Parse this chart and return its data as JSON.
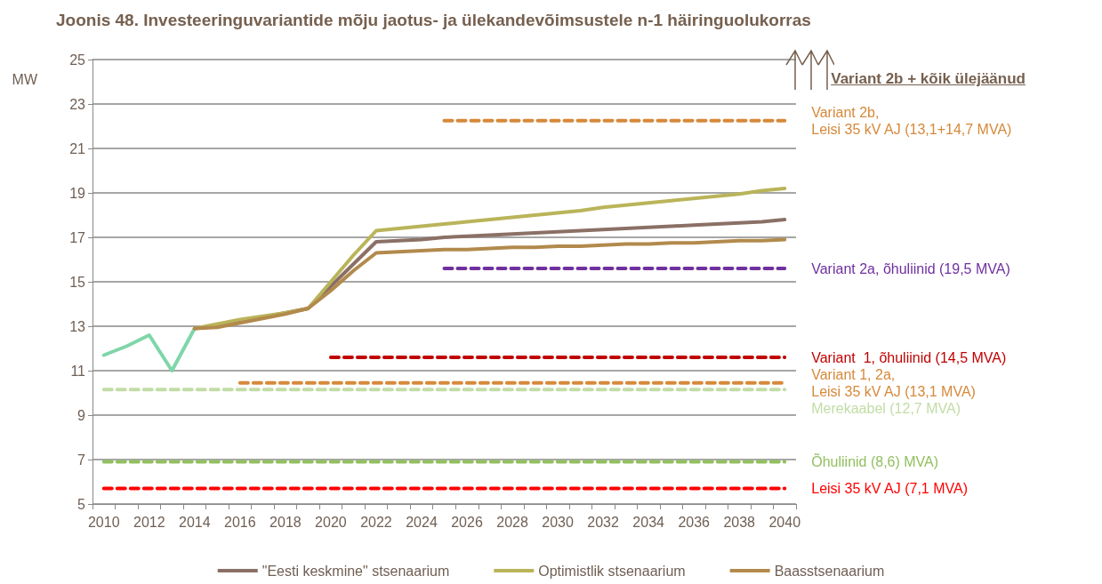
{
  "chart_data": {
    "type": "line",
    "title": "Joonis 48. Investeeringuvariantide mõju jaotus- ja ülekandevõimsustele n-1 häiringuolukorras",
    "ylabel": "MW",
    "categories": [
      "2010",
      null,
      "2012",
      null,
      "2014",
      null,
      "2016",
      null,
      "2018",
      null,
      "2020",
      null,
      "2022",
      null,
      "2024",
      null,
      "2026",
      null,
      "2028",
      null,
      "2030",
      null,
      "2032",
      null,
      "2034",
      null,
      "2036",
      null,
      "2038",
      null,
      "2040"
    ],
    "ylim": [
      5,
      25
    ],
    "yticks": [
      5,
      7,
      9,
      11,
      13,
      15,
      17,
      19,
      21,
      23,
      25
    ],
    "grid": "y",
    "legend": "bottom",
    "marker": "none",
    "annotations": [
      "Variant 2b + kõik ülejäänud"
    ],
    "series": [
      {
        "color": "#7fd6a8",
        "line_style": "solid",
        "values": [
          11.7,
          12.1,
          12.6,
          11.0,
          12.9,
          null,
          null,
          null,
          null,
          null,
          null,
          null,
          null,
          null,
          null,
          null,
          null,
          null,
          null,
          null,
          null,
          null,
          null,
          null,
          null,
          null,
          null,
          null,
          null,
          null,
          null
        ]
      },
      {
        "name": "\"Eesti keskmine\" stsenaarium",
        "color": "#8b7066",
        "line_style": "solid",
        "values": [
          null,
          null,
          null,
          null,
          12.9,
          13.0,
          13.2,
          13.4,
          13.6,
          13.8,
          14.8,
          15.8,
          16.8,
          16.85,
          16.9,
          17.0,
          17.05,
          17.1,
          17.15,
          17.2,
          17.25,
          17.3,
          17.35,
          17.4,
          17.45,
          17.5,
          17.55,
          17.6,
          17.65,
          17.7,
          17.8
        ]
      },
      {
        "name": "Optimistlik stsenaarium",
        "color": "#bab45a",
        "line_style": "solid",
        "values": [
          null,
          null,
          null,
          null,
          12.9,
          13.1,
          13.3,
          13.45,
          13.6,
          13.8,
          15.0,
          16.2,
          17.3,
          17.4,
          17.5,
          17.6,
          17.7,
          17.8,
          17.9,
          18.0,
          18.1,
          18.2,
          18.35,
          18.45,
          18.55,
          18.65,
          18.75,
          18.85,
          18.95,
          19.1,
          19.2
        ]
      },
      {
        "name": "Baasstsenaarium",
        "color": "#b28a4c",
        "line_style": "solid",
        "values": [
          null,
          null,
          null,
          null,
          12.9,
          12.95,
          13.15,
          13.35,
          13.55,
          13.8,
          14.6,
          15.5,
          16.3,
          16.35,
          16.4,
          16.45,
          16.45,
          16.5,
          16.55,
          16.55,
          16.6,
          16.6,
          16.65,
          16.7,
          16.7,
          16.75,
          16.75,
          16.8,
          16.85,
          16.85,
          16.9
        ]
      },
      {
        "name": "Variant 2b,\nLeisi 35 kV AJ (13,1+14,7 MVA)",
        "color": "#d6893a",
        "line_style": "dashed",
        "values": [
          null,
          null,
          null,
          null,
          null,
          null,
          null,
          null,
          null,
          null,
          null,
          null,
          null,
          null,
          null,
          22.25,
          22.25,
          22.25,
          22.25,
          22.25,
          22.25,
          22.25,
          22.25,
          22.25,
          22.25,
          22.25,
          22.25,
          22.25,
          22.25,
          22.25,
          22.25
        ]
      },
      {
        "name": "Variant 2a, õhuliinid (19,5 MVA)",
        "color": "#7030a0",
        "line_style": "dashed",
        "values": [
          null,
          null,
          null,
          null,
          null,
          null,
          null,
          null,
          null,
          null,
          null,
          null,
          null,
          null,
          null,
          15.6,
          15.6,
          15.6,
          15.6,
          15.6,
          15.6,
          15.6,
          15.6,
          15.6,
          15.6,
          15.6,
          15.6,
          15.6,
          15.6,
          15.6,
          15.6
        ]
      },
      {
        "name": "Variant  1, õhuliinid (14,5 MVA)",
        "color": "#c00000",
        "line_style": "dashed",
        "values": [
          null,
          null,
          null,
          null,
          null,
          null,
          null,
          null,
          null,
          null,
          11.6,
          11.6,
          11.6,
          11.6,
          11.6,
          11.6,
          11.6,
          11.6,
          11.6,
          11.6,
          11.6,
          11.6,
          11.6,
          11.6,
          11.6,
          11.6,
          11.6,
          11.6,
          11.6,
          11.6,
          11.6
        ]
      },
      {
        "name": "Variant 1, 2a,\nLeisi 35 kV AJ (13,1 MVA)",
        "color": "#d6893a",
        "line_style": "dashed",
        "values": [
          null,
          null,
          null,
          null,
          null,
          null,
          10.45,
          10.45,
          10.45,
          10.45,
          10.45,
          10.45,
          10.45,
          10.45,
          10.45,
          10.45,
          10.45,
          10.45,
          10.45,
          10.45,
          10.45,
          10.45,
          10.45,
          10.45,
          10.45,
          10.45,
          10.45,
          10.45,
          10.45,
          10.45,
          10.45
        ]
      },
      {
        "name": "Merekaabel (12,7 MVA)",
        "color": "#c2dca6",
        "line_style": "dashed",
        "values": [
          10.15,
          10.15,
          10.15,
          10.15,
          10.15,
          10.15,
          10.15,
          10.15,
          10.15,
          10.15,
          10.15,
          10.15,
          10.15,
          10.15,
          10.15,
          10.15,
          10.15,
          10.15,
          10.15,
          10.15,
          10.15,
          10.15,
          10.15,
          10.15,
          10.15,
          10.15,
          10.15,
          10.15,
          10.15,
          10.15,
          10.15
        ]
      },
      {
        "name": "Õhuliinid (8,6) MVA)",
        "color": "#92c060",
        "line_style": "dashed",
        "values": [
          6.9,
          6.9,
          6.9,
          6.9,
          6.9,
          6.9,
          6.9,
          6.9,
          6.9,
          6.9,
          6.9,
          6.9,
          6.9,
          6.9,
          6.9,
          6.9,
          6.9,
          6.9,
          6.9,
          6.9,
          6.9,
          6.9,
          6.9,
          6.9,
          6.9,
          6.9,
          6.9,
          6.9,
          6.9,
          6.9,
          6.9
        ]
      },
      {
        "name": "Leisi 35 kV AJ (7,1 MVA)",
        "color": "#ff0000",
        "line_style": "dashed",
        "values": [
          5.7,
          5.7,
          5.7,
          5.7,
          5.7,
          5.7,
          5.7,
          5.7,
          5.7,
          5.7,
          5.7,
          5.7,
          5.7,
          5.7,
          5.7,
          5.7,
          5.7,
          5.7,
          5.7,
          5.7,
          5.7,
          5.7,
          5.7,
          5.7,
          5.7,
          5.7,
          5.7,
          5.7,
          5.7,
          5.7,
          5.7
        ]
      }
    ]
  }
}
